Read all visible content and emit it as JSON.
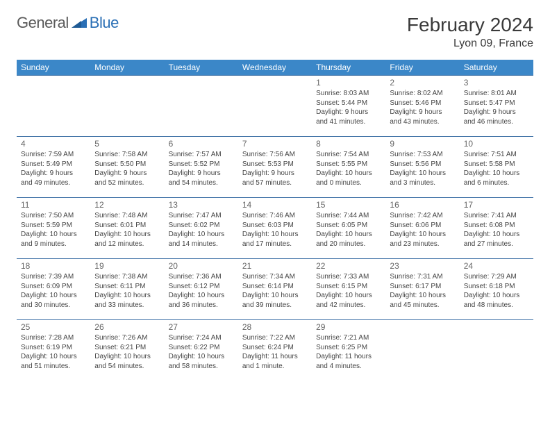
{
  "logo": {
    "text1": "General",
    "text2": "Blue"
  },
  "title": "February 2024",
  "location": "Lyon 09, France",
  "colors": {
    "header_bg": "#3b87c8",
    "header_text": "#ffffff",
    "row_border": "#3b6fa5",
    "logo_gray": "#5a5a5a",
    "logo_blue": "#2a6fb5",
    "title_color": "#3a3a3a",
    "daynum_color": "#666666",
    "body_text": "#444444"
  },
  "days_of_week": [
    "Sunday",
    "Monday",
    "Tuesday",
    "Wednesday",
    "Thursday",
    "Friday",
    "Saturday"
  ],
  "weeks": [
    [
      null,
      null,
      null,
      null,
      {
        "n": "1",
        "sunrise": "8:03 AM",
        "sunset": "5:44 PM",
        "dl1": "9 hours",
        "dl2": "and 41 minutes."
      },
      {
        "n": "2",
        "sunrise": "8:02 AM",
        "sunset": "5:46 PM",
        "dl1": "9 hours",
        "dl2": "and 43 minutes."
      },
      {
        "n": "3",
        "sunrise": "8:01 AM",
        "sunset": "5:47 PM",
        "dl1": "9 hours",
        "dl2": "and 46 minutes."
      }
    ],
    [
      {
        "n": "4",
        "sunrise": "7:59 AM",
        "sunset": "5:49 PM",
        "dl1": "9 hours",
        "dl2": "and 49 minutes."
      },
      {
        "n": "5",
        "sunrise": "7:58 AM",
        "sunset": "5:50 PM",
        "dl1": "9 hours",
        "dl2": "and 52 minutes."
      },
      {
        "n": "6",
        "sunrise": "7:57 AM",
        "sunset": "5:52 PM",
        "dl1": "9 hours",
        "dl2": "and 54 minutes."
      },
      {
        "n": "7",
        "sunrise": "7:56 AM",
        "sunset": "5:53 PM",
        "dl1": "9 hours",
        "dl2": "and 57 minutes."
      },
      {
        "n": "8",
        "sunrise": "7:54 AM",
        "sunset": "5:55 PM",
        "dl1": "10 hours",
        "dl2": "and 0 minutes."
      },
      {
        "n": "9",
        "sunrise": "7:53 AM",
        "sunset": "5:56 PM",
        "dl1": "10 hours",
        "dl2": "and 3 minutes."
      },
      {
        "n": "10",
        "sunrise": "7:51 AM",
        "sunset": "5:58 PM",
        "dl1": "10 hours",
        "dl2": "and 6 minutes."
      }
    ],
    [
      {
        "n": "11",
        "sunrise": "7:50 AM",
        "sunset": "5:59 PM",
        "dl1": "10 hours",
        "dl2": "and 9 minutes."
      },
      {
        "n": "12",
        "sunrise": "7:48 AM",
        "sunset": "6:01 PM",
        "dl1": "10 hours",
        "dl2": "and 12 minutes."
      },
      {
        "n": "13",
        "sunrise": "7:47 AM",
        "sunset": "6:02 PM",
        "dl1": "10 hours",
        "dl2": "and 14 minutes."
      },
      {
        "n": "14",
        "sunrise": "7:46 AM",
        "sunset": "6:03 PM",
        "dl1": "10 hours",
        "dl2": "and 17 minutes."
      },
      {
        "n": "15",
        "sunrise": "7:44 AM",
        "sunset": "6:05 PM",
        "dl1": "10 hours",
        "dl2": "and 20 minutes."
      },
      {
        "n": "16",
        "sunrise": "7:42 AM",
        "sunset": "6:06 PM",
        "dl1": "10 hours",
        "dl2": "and 23 minutes."
      },
      {
        "n": "17",
        "sunrise": "7:41 AM",
        "sunset": "6:08 PM",
        "dl1": "10 hours",
        "dl2": "and 27 minutes."
      }
    ],
    [
      {
        "n": "18",
        "sunrise": "7:39 AM",
        "sunset": "6:09 PM",
        "dl1": "10 hours",
        "dl2": "and 30 minutes."
      },
      {
        "n": "19",
        "sunrise": "7:38 AM",
        "sunset": "6:11 PM",
        "dl1": "10 hours",
        "dl2": "and 33 minutes."
      },
      {
        "n": "20",
        "sunrise": "7:36 AM",
        "sunset": "6:12 PM",
        "dl1": "10 hours",
        "dl2": "and 36 minutes."
      },
      {
        "n": "21",
        "sunrise": "7:34 AM",
        "sunset": "6:14 PM",
        "dl1": "10 hours",
        "dl2": "and 39 minutes."
      },
      {
        "n": "22",
        "sunrise": "7:33 AM",
        "sunset": "6:15 PM",
        "dl1": "10 hours",
        "dl2": "and 42 minutes."
      },
      {
        "n": "23",
        "sunrise": "7:31 AM",
        "sunset": "6:17 PM",
        "dl1": "10 hours",
        "dl2": "and 45 minutes."
      },
      {
        "n": "24",
        "sunrise": "7:29 AM",
        "sunset": "6:18 PM",
        "dl1": "10 hours",
        "dl2": "and 48 minutes."
      }
    ],
    [
      {
        "n": "25",
        "sunrise": "7:28 AM",
        "sunset": "6:19 PM",
        "dl1": "10 hours",
        "dl2": "and 51 minutes."
      },
      {
        "n": "26",
        "sunrise": "7:26 AM",
        "sunset": "6:21 PM",
        "dl1": "10 hours",
        "dl2": "and 54 minutes."
      },
      {
        "n": "27",
        "sunrise": "7:24 AM",
        "sunset": "6:22 PM",
        "dl1": "10 hours",
        "dl2": "and 58 minutes."
      },
      {
        "n": "28",
        "sunrise": "7:22 AM",
        "sunset": "6:24 PM",
        "dl1": "11 hours",
        "dl2": "and 1 minute."
      },
      {
        "n": "29",
        "sunrise": "7:21 AM",
        "sunset": "6:25 PM",
        "dl1": "11 hours",
        "dl2": "and 4 minutes."
      },
      null,
      null
    ]
  ],
  "labels": {
    "sunrise_prefix": "Sunrise: ",
    "sunset_prefix": "Sunset: ",
    "daylight_prefix": "Daylight: "
  }
}
